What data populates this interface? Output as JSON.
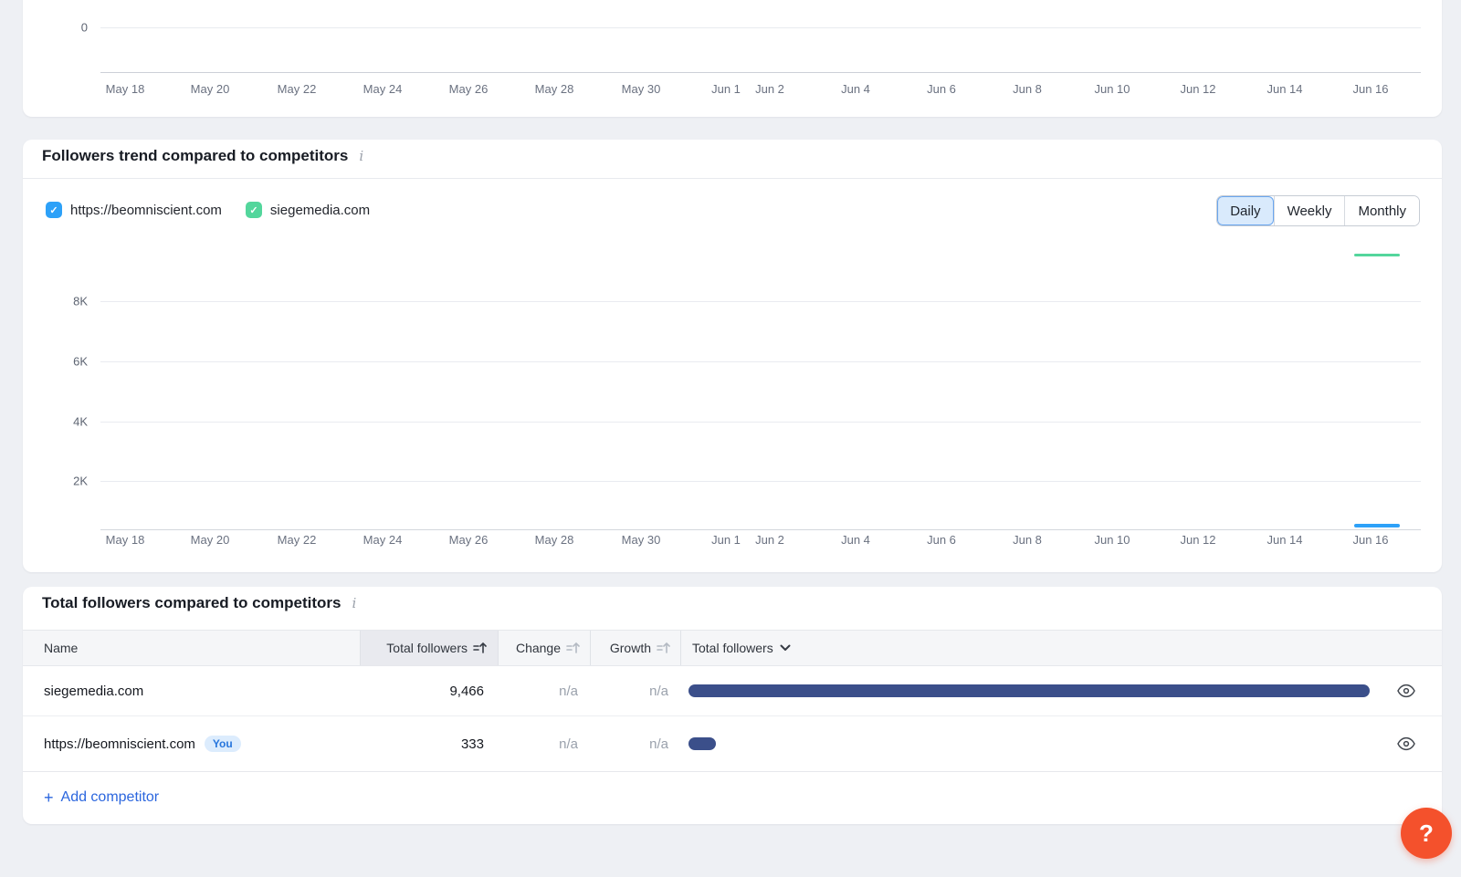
{
  "colors": {
    "page_bg": "#eef0f4",
    "series_blue": "#2da1f8",
    "series_green": "#53d69c",
    "bar_navy": "#3b4f8a",
    "link_blue": "#2b66de",
    "help_orange": "#f4512c",
    "selected_toggle_bg": "#d9eafc"
  },
  "icons": {
    "info": "i",
    "check": "✓",
    "plus": "+",
    "help": "?"
  },
  "x_axis": {
    "ticks": [
      "May 18",
      "May 20",
      "May 22",
      "May 24",
      "May 26",
      "May 28",
      "May 30",
      "Jun 1",
      "Jun 2",
      "Jun 4",
      "Jun 6",
      "Jun 8",
      "Jun 10",
      "Jun 12",
      "Jun 14",
      "Jun 16"
    ]
  },
  "top_chart": {
    "y_tick": "0"
  },
  "trend_card": {
    "title": "Followers trend compared to competitors",
    "legend": {
      "items": [
        {
          "label": "https://beomniscient.com",
          "color": "#2da1f8",
          "checked": true
        },
        {
          "label": "siegemedia.com",
          "color": "#53d69c",
          "checked": true
        }
      ]
    },
    "period_toggle": {
      "options": [
        "Daily",
        "Weekly",
        "Monthly"
      ],
      "selected": "Daily"
    },
    "chart_data": {
      "type": "line",
      "y_ticks": [
        "8K",
        "6K",
        "4K",
        "2K"
      ],
      "ylim": [
        0,
        9000
      ],
      "x_ticks": [
        "May 18",
        "May 20",
        "May 22",
        "May 24",
        "May 26",
        "May 28",
        "May 30",
        "Jun 1",
        "Jun 2",
        "Jun 4",
        "Jun 6",
        "Jun 8",
        "Jun 10",
        "Jun 12",
        "Jun 14",
        "Jun 16"
      ],
      "grid": true,
      "series": [
        {
          "name": "siegemedia.com",
          "color": "#53d69c",
          "visible_from": "Jun 15",
          "visible_to": "Jun 16",
          "value": 9466
        },
        {
          "name": "https://beomniscient.com",
          "color": "#2da1f8",
          "visible_from": "Jun 15",
          "visible_to": "Jun 16",
          "value": 333
        }
      ]
    }
  },
  "table_card": {
    "title": "Total followers compared to competitors",
    "header": {
      "name": "Name",
      "total_followers": "Total followers",
      "change": "Change",
      "growth": "Growth",
      "bar_column": "Total followers"
    },
    "rows": [
      {
        "name": "siegemedia.com",
        "total_followers": "9,466",
        "change": "n/a",
        "growth": "n/a",
        "bar_pct": 100
      },
      {
        "name": "https://beomniscient.com",
        "badge": "You",
        "total_followers": "333",
        "change": "n/a",
        "growth": "n/a",
        "bar_pct": 4
      }
    ],
    "add_competitor_label": "Add competitor"
  },
  "help_button": {
    "label": "?"
  }
}
